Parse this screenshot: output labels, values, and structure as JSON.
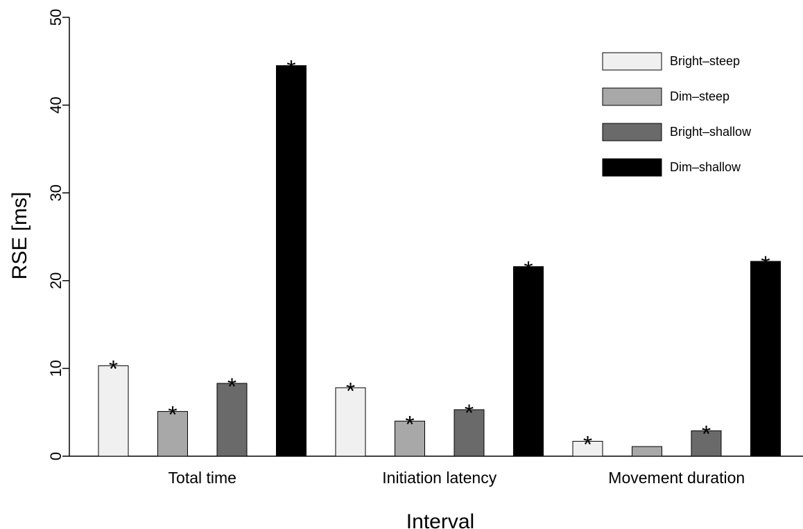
{
  "chart_data": {
    "type": "bar",
    "xlabel": "Interval",
    "ylabel": "RSE [ms]",
    "ylim": [
      0,
      50
    ],
    "yticks": [
      "0",
      "10",
      "20",
      "30",
      "40",
      "50"
    ],
    "grid": false,
    "legend_position": "top-right",
    "categories": [
      "Total time",
      "Initiation latency",
      "Movement duration"
    ],
    "series": [
      {
        "name": "Bright–steep",
        "color": "#f0f0f0",
        "values": [
          10.3,
          7.8,
          1.7
        ],
        "significant": [
          true,
          true,
          true
        ]
      },
      {
        "name": "Dim–steep",
        "color": "#a8a8a8",
        "values": [
          5.1,
          4.0,
          1.1
        ],
        "significant": [
          true,
          true,
          false
        ]
      },
      {
        "name": "Bright–shallow",
        "color": "#6a6a6a",
        "values": [
          8.3,
          5.3,
          2.9
        ],
        "significant": [
          true,
          true,
          true
        ]
      },
      {
        "name": "Dim–shallow",
        "color": "#000000",
        "values": [
          44.5,
          21.6,
          22.2
        ],
        "significant": [
          true,
          true,
          true
        ]
      }
    ],
    "significance_marker": "*"
  }
}
